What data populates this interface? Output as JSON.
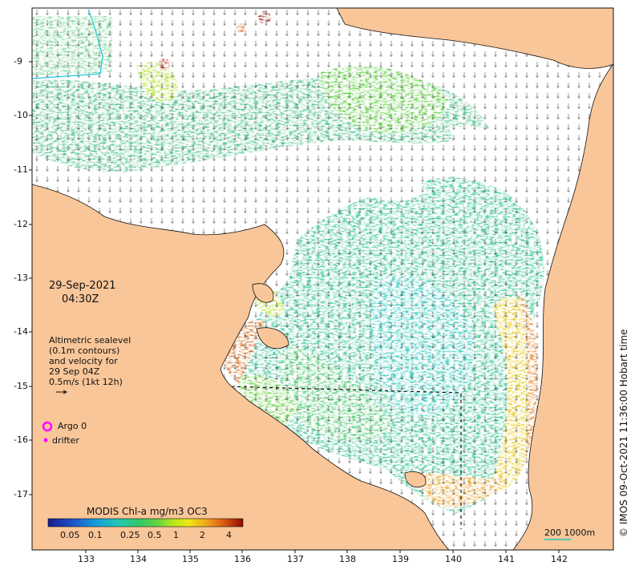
{
  "date": "29-Sep-2021",
  "time": "04:30Z",
  "altimetry_note": [
    "Altimetric sealevel",
    "(0.1m contours)",
    "and velocity for",
    "29 Sep 04Z",
    "0.5m/s (1kt 12h)"
  ],
  "legend": {
    "argo_label": "Argo 0",
    "drifter_label": "drifter",
    "argo_color": "#ff00ff",
    "drifter_color": "#ff00ff"
  },
  "colorbar": {
    "title": "MODIS Chl-a mg/m3 OC3",
    "ticks": [
      "0.05",
      "0.1",
      "0.25",
      "0.5",
      "1",
      "2",
      "4"
    ],
    "colors": [
      "#1a1a8c",
      "#1f4fc8",
      "#14a0d8",
      "#22c8b4",
      "#30c86e",
      "#64d23c",
      "#b4e61e",
      "#f0e614",
      "#f0a01e",
      "#dc5a14",
      "#b41e0a",
      "#8c0a00"
    ]
  },
  "scale_bar": "200  1000m",
  "copyright": "© IMOS 09-Oct-2021 11:36:00 Hobart time",
  "x_ticks": [
    "133",
    "134",
    "135",
    "136",
    "137",
    "138",
    "139",
    "140",
    "141",
    "142"
  ],
  "y_ticks": [
    "9",
    "10",
    "11",
    "12",
    "13",
    "14",
    "15",
    "16",
    "17"
  ],
  "colors": {
    "land": "#f9c699",
    "ocean": "#ffffff"
  }
}
